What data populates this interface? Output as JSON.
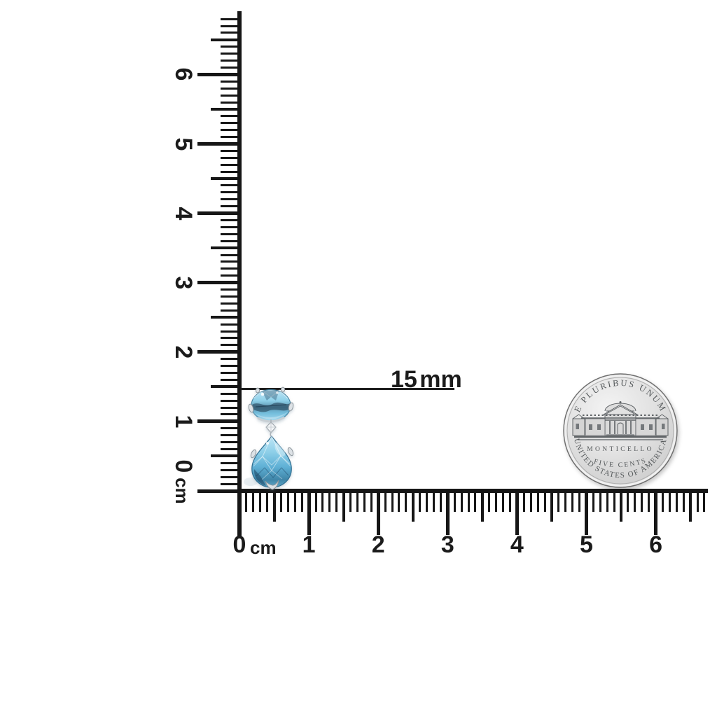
{
  "image": {
    "background": "#ffffff",
    "ink": "#161616"
  },
  "measurement": {
    "label": "15 mm"
  },
  "rulers": {
    "unit": "cm",
    "horizontal": {
      "labels": [
        "0",
        "1",
        "2",
        "3",
        "4",
        "5",
        "6"
      ]
    },
    "vertical": {
      "labels": [
        "0",
        "1",
        "2",
        "3",
        "4",
        "5",
        "6"
      ]
    }
  },
  "earring": {
    "colors": {
      "light": "#c3e7f6",
      "mid": "#5fb0d5",
      "deep": "#2e6a8c",
      "metal": "#dde2e6"
    }
  },
  "coin": {
    "motto": "E PLURIBUS UNUM",
    "building": "MONTICELLO",
    "denomination": "FIVE CENTS",
    "country": "UNITED STATES OF AMERICA",
    "face_color": "#dedede",
    "engraving_color": "#54585a"
  }
}
